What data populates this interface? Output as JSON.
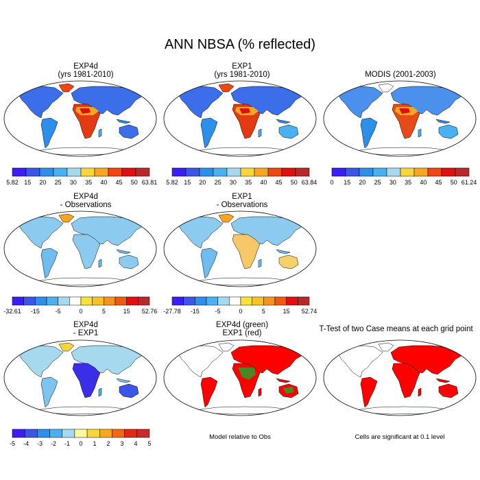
{
  "title": "ANN NBSA (% reflected)",
  "colors": {
    "ocean": "#ffffff",
    "outline": "#000000",
    "sig_red": "#ff0000",
    "sig_green": "#2a9e2a",
    "abs_scale": [
      "#3b1ef5",
      "#3b55e8",
      "#2e8fea",
      "#4ab0f0",
      "#a6d8ee",
      "#f6d63a",
      "#f6a622",
      "#ef4612",
      "#e01010",
      "#b82a2a"
    ],
    "diff_scale": [
      "#3b1ef5",
      "#3b55e8",
      "#2e8fea",
      "#4ab0f0",
      "#a6d8ee",
      "#ffffff",
      "#f6e23a",
      "#f6c22a",
      "#f69222",
      "#ef5a12",
      "#e01010",
      "#b82a2a"
    ],
    "model_diff_scale": [
      "#3b1ef5",
      "#3b55e8",
      "#2e8fea",
      "#4ab0f0",
      "#a6d8ee",
      "#fdf6a0",
      "#f6d63a",
      "#f6a622",
      "#ef6a12",
      "#e02a10",
      "#c82a2a"
    ]
  },
  "chart_data": [
    {
      "type": "heatmap",
      "id": "exp4d",
      "title": "EXP4d",
      "subtitle": "(yrs 1981-2010)",
      "colorbar": [
        "5.82",
        "15",
        "20",
        "25",
        "30",
        "35",
        "40",
        "45",
        "50",
        "63.81"
      ]
    },
    {
      "type": "heatmap",
      "id": "exp1",
      "title": "EXP1",
      "subtitle": "(yrs 1981-2010)",
      "colorbar": [
        "5.82",
        "15",
        "20",
        "25",
        "30",
        "35",
        "40",
        "45",
        "50",
        "63.84"
      ]
    },
    {
      "type": "heatmap",
      "id": "modis",
      "title": "MODIS (2001-2003)",
      "subtitle": "",
      "colorbar": [
        "0",
        "15",
        "20",
        "25",
        "30",
        "35",
        "40",
        "45",
        "50",
        "61.24"
      ]
    },
    {
      "type": "heatmap",
      "id": "exp4d_obs",
      "title": "EXP4d",
      "subtitle": "- Observations",
      "colorbar": [
        "-32.61",
        "-15",
        "-5",
        "0",
        "5",
        "15",
        "52.76"
      ]
    },
    {
      "type": "heatmap",
      "id": "exp1_obs",
      "title": "EXP1",
      "subtitle": "- Observations",
      "colorbar": [
        "-27.78",
        "-15",
        "-5",
        "0",
        "5",
        "15",
        "52.74"
      ]
    },
    {
      "type": "heatmap",
      "id": "exp4d_exp1",
      "title": "EXP4d",
      "subtitle": "- EXP1",
      "colorbar": [
        "-5",
        "-4",
        "-3",
        "-2",
        "-1",
        "0",
        "1",
        "2",
        "3",
        "4",
        "5"
      ]
    },
    {
      "type": "heatmap",
      "id": "model_rel",
      "title": "EXP4d (green)",
      "subtitle": "EXP1 (red)",
      "note": "Model relative to Obs"
    },
    {
      "type": "heatmap",
      "id": "ttest",
      "title": "T-Test of two Case means at each grid point",
      "subtitle": "",
      "note": "Cells are significant at 0.1 level"
    }
  ]
}
